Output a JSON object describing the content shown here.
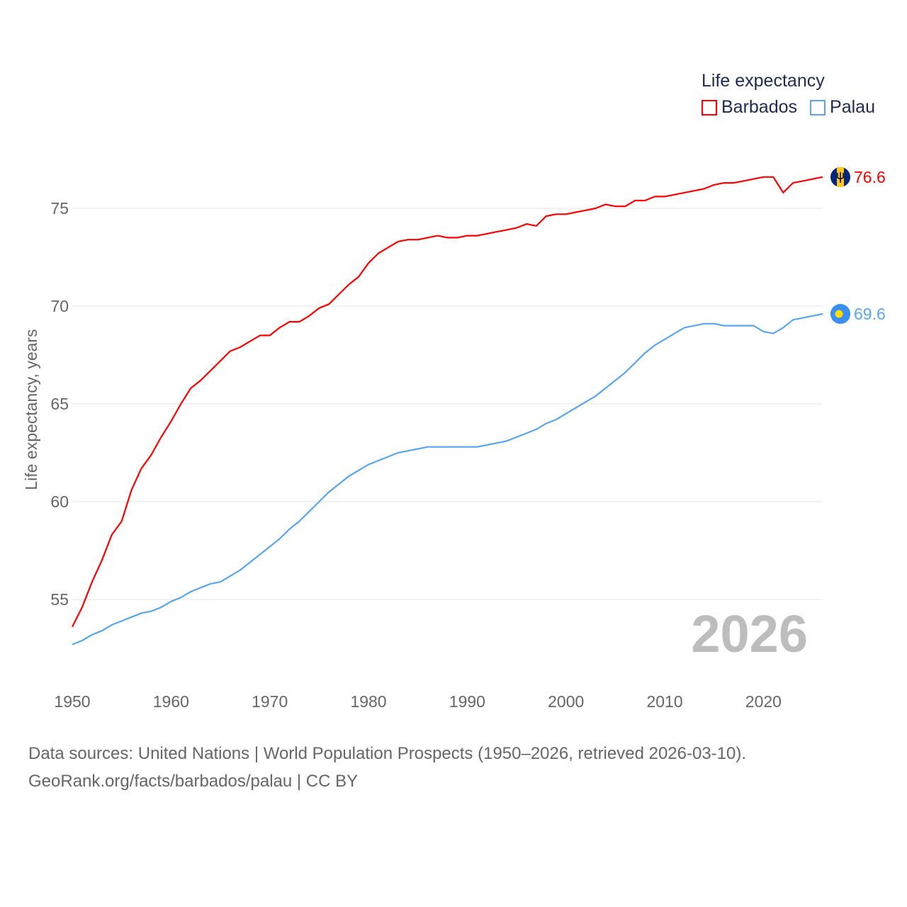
{
  "chart_data": {
    "type": "line",
    "title": "Life expectancy",
    "xlabel": "",
    "ylabel": "Life expectancy, years",
    "xlim": [
      1950,
      2026
    ],
    "ylim": [
      51,
      77
    ],
    "grid": true,
    "legend_placement": "top-right",
    "y_ticks": [
      55,
      60,
      65,
      70,
      75
    ],
    "x_ticks": [
      1950,
      1960,
      1970,
      1980,
      1990,
      2000,
      2010,
      2020
    ],
    "year_watermark": "2026",
    "x": [
      1950,
      1951,
      1952,
      1953,
      1954,
      1955,
      1956,
      1957,
      1958,
      1959,
      1960,
      1961,
      1962,
      1963,
      1964,
      1965,
      1966,
      1967,
      1968,
      1969,
      1970,
      1971,
      1972,
      1973,
      1974,
      1975,
      1976,
      1977,
      1978,
      1979,
      1980,
      1981,
      1982,
      1983,
      1984,
      1985,
      1986,
      1987,
      1988,
      1989,
      1990,
      1991,
      1992,
      1993,
      1994,
      1995,
      1996,
      1997,
      1998,
      1999,
      2000,
      2001,
      2002,
      2003,
      2004,
      2005,
      2006,
      2007,
      2008,
      2009,
      2010,
      2011,
      2012,
      2013,
      2014,
      2015,
      2016,
      2017,
      2018,
      2019,
      2020,
      2021,
      2022,
      2023,
      2024,
      2025,
      2026
    ],
    "series": [
      {
        "name": "Barbados",
        "color": "#ff0000",
        "end_label": "76.6",
        "values": [
          53.6,
          54.6,
          55.9,
          57.0,
          58.3,
          59.0,
          60.6,
          61.7,
          62.4,
          63.3,
          64.1,
          65.0,
          65.8,
          66.2,
          66.7,
          67.2,
          67.7,
          67.9,
          68.2,
          68.5,
          68.5,
          68.9,
          69.2,
          69.2,
          69.5,
          69.9,
          70.1,
          70.6,
          71.1,
          71.5,
          72.2,
          72.7,
          73.0,
          73.3,
          73.4,
          73.4,
          73.5,
          73.6,
          73.5,
          73.5,
          73.6,
          73.6,
          73.7,
          73.8,
          73.9,
          74.0,
          74.2,
          74.1,
          74.6,
          74.7,
          74.7,
          74.8,
          74.9,
          75.0,
          75.2,
          75.1,
          75.1,
          75.4,
          75.4,
          75.6,
          75.6,
          75.7,
          75.8,
          75.9,
          76.0,
          76.2,
          76.3,
          76.3,
          76.4,
          76.5,
          76.6,
          76.6,
          75.8,
          76.3,
          76.4,
          76.5,
          76.6
        ]
      },
      {
        "name": "Palau",
        "color": "#5aa5ee",
        "end_label": "69.6",
        "values": [
          52.7,
          52.9,
          53.2,
          53.4,
          53.7,
          53.9,
          54.1,
          54.3,
          54.4,
          54.6,
          54.9,
          55.1,
          55.4,
          55.6,
          55.8,
          55.9,
          56.2,
          56.5,
          56.9,
          57.3,
          57.7,
          58.1,
          58.6,
          59.0,
          59.5,
          60.0,
          60.5,
          60.9,
          61.3,
          61.6,
          61.9,
          62.1,
          62.3,
          62.5,
          62.6,
          62.7,
          62.8,
          62.8,
          62.8,
          62.8,
          62.8,
          62.8,
          62.9,
          63.0,
          63.1,
          63.3,
          63.5,
          63.7,
          64.0,
          64.2,
          64.5,
          64.8,
          65.1,
          65.4,
          65.8,
          66.2,
          66.6,
          67.1,
          67.6,
          68.0,
          68.3,
          68.6,
          68.9,
          69.0,
          69.1,
          69.1,
          69.0,
          69.0,
          69.0,
          69.0,
          68.7,
          68.6,
          68.9,
          69.3,
          69.4,
          69.5,
          69.6
        ]
      }
    ]
  },
  "footer": {
    "line1": "Data sources: United Nations | World Population Prospects (1950–2026, retrieved 2026-03-10).",
    "line2": "GeoRank.org/facts/barbados/palau | CC BY"
  }
}
